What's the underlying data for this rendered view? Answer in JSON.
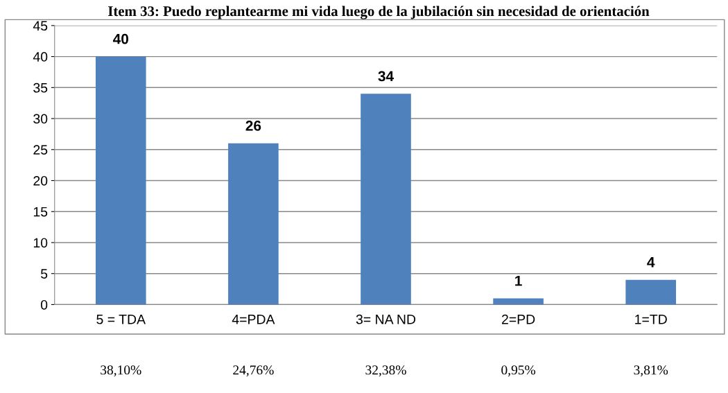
{
  "chart_data": {
    "type": "bar",
    "title": "Item 33: Puedo replantearme mi vida luego de la jubilación sin necesidad de orientación",
    "categories": [
      "5 = TDA",
      "4=PDA",
      "3= NA ND",
      "2=PD",
      "1=TD"
    ],
    "values": [
      40,
      26,
      34,
      1,
      4
    ],
    "color": "#4f81bd",
    "data_labels": true,
    "ylim": [
      0,
      45
    ],
    "yticks": [
      0,
      5,
      10,
      15,
      20,
      25,
      30,
      35,
      40,
      45
    ],
    "grid": "y",
    "legend": false,
    "annotations": [
      "38,10%",
      "24,76%",
      "32,38%",
      "0,95%",
      "3,81%"
    ]
  }
}
